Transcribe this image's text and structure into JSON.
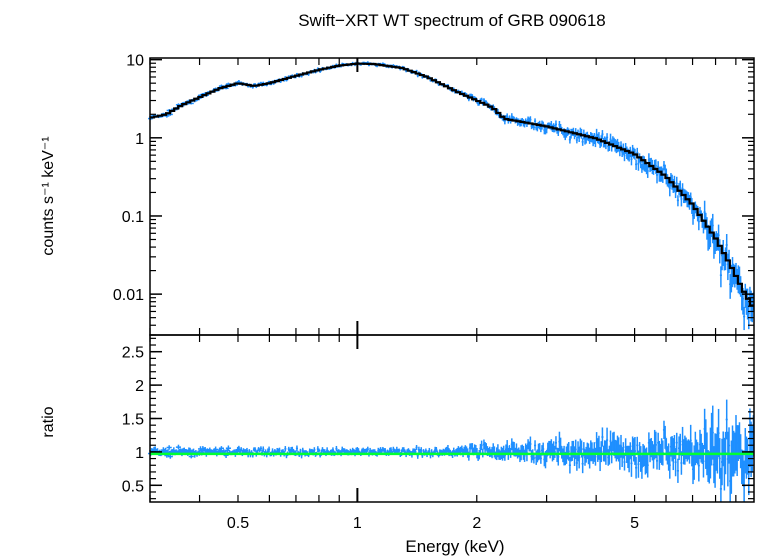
{
  "chart_data": {
    "type": "scatter",
    "title": "Swift−XRT WT spectrum of GRB 090618",
    "xlabel": "Energy (keV)",
    "x_scale": "log",
    "xlim": [
      0.3,
      10
    ],
    "x_tick_labels": [
      "0.5",
      "1",
      "2",
      "5"
    ],
    "x_tick_values": [
      0.5,
      1,
      2,
      5
    ],
    "colors": {
      "data": "#1e8fff",
      "model": "#000000",
      "ratio_line": "#00ff33"
    },
    "panels": [
      {
        "name": "spectrum",
        "ylabel": "counts s⁻¹ keV⁻¹",
        "y_scale": "log",
        "ylim": [
          0.003,
          10.5
        ],
        "y_tick_labels": [
          "10",
          "1",
          "0.1",
          "0.01"
        ],
        "y_tick_values": [
          10,
          1,
          0.1,
          0.01
        ],
        "model_points": [
          [
            0.3,
            1.8
          ],
          [
            0.33,
            2.0
          ],
          [
            0.36,
            2.6
          ],
          [
            0.4,
            3.3
          ],
          [
            0.45,
            4.3
          ],
          [
            0.5,
            5.0
          ],
          [
            0.55,
            4.6
          ],
          [
            0.6,
            5.0
          ],
          [
            0.7,
            6.2
          ],
          [
            0.8,
            7.4
          ],
          [
            0.9,
            8.4
          ],
          [
            1.0,
            8.9
          ],
          [
            1.1,
            8.8
          ],
          [
            1.3,
            7.8
          ],
          [
            1.5,
            6.0
          ],
          [
            1.8,
            3.8
          ],
          [
            2.1,
            2.7
          ],
          [
            2.2,
            2.4
          ],
          [
            2.35,
            1.75
          ],
          [
            2.6,
            1.6
          ],
          [
            3.0,
            1.4
          ],
          [
            4.0,
            0.98
          ],
          [
            5.0,
            0.62
          ],
          [
            6.0,
            0.32
          ],
          [
            7.0,
            0.14
          ],
          [
            8.0,
            0.052
          ],
          [
            8.7,
            0.024
          ],
          [
            9.5,
            0.01
          ],
          [
            10.0,
            0.0065
          ]
        ]
      },
      {
        "name": "ratio",
        "ylabel": "ratio",
        "y_scale": "linear",
        "ylim": [
          0.25,
          2.75
        ],
        "y_tick_labels": [
          "0.5",
          "1",
          "1.5",
          "2",
          "2.5"
        ],
        "y_tick_values": [
          0.5,
          1,
          1.5,
          2,
          2.5
        ],
        "reference_line": 0.97
      }
    ]
  }
}
